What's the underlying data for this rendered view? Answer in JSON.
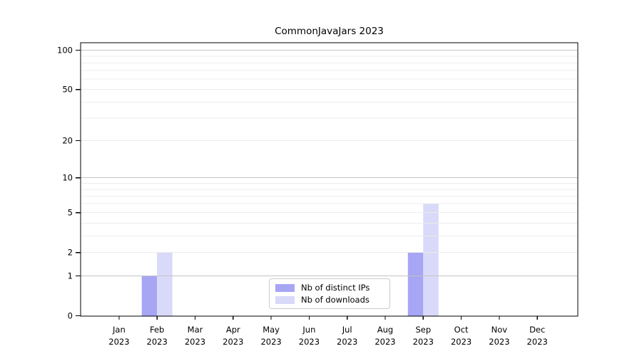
{
  "figure": {
    "background": "#ffffff",
    "text_color": "#000000"
  },
  "chart_data": {
    "type": "bar",
    "title": "CommonJavaJars 2023",
    "xlabel": "",
    "ylabel": "",
    "categories": [
      "Jan\n2023",
      "Feb\n2023",
      "Mar\n2023",
      "Apr\n2023",
      "May\n2023",
      "Jun\n2023",
      "Jul\n2023",
      "Aug\n2023",
      "Sep\n2023",
      "Oct\n2023",
      "Nov\n2023",
      "Dec\n2023"
    ],
    "series": [
      {
        "name": "Nb of distinct IPs",
        "color": "#a6a6f4",
        "values": [
          0,
          1,
          0,
          0,
          0,
          0,
          0,
          0,
          2,
          0,
          0,
          0
        ]
      },
      {
        "name": "Nb of downloads",
        "color": "#d9d9f9",
        "values": [
          0,
          2,
          0,
          0,
          0,
          0,
          0,
          0,
          6,
          0,
          0,
          0
        ]
      }
    ],
    "yscale": "log1p",
    "ylim": [
      0,
      114
    ],
    "yticks": [
      0,
      1,
      2,
      5,
      10,
      20,
      50,
      100
    ],
    "grid": {
      "major_values": [
        1,
        10,
        100
      ],
      "minor_values": [
        2,
        3,
        4,
        5,
        6,
        7,
        8,
        9,
        20,
        30,
        40,
        50,
        60,
        70,
        80,
        90
      ],
      "major_color": "#c4c4c4",
      "minor_color": "#ececec",
      "grid_above_bars": true
    },
    "legend_position": "lower center inside",
    "axis_color": "#000000"
  }
}
